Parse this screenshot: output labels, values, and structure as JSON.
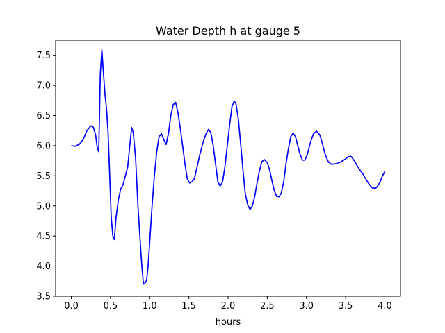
{
  "chart_data": {
    "type": "line",
    "title": "Water Depth h at gauge 5",
    "xlabel": "hours",
    "ylabel": "",
    "xlim": [
      -0.2,
      4.2
    ],
    "ylim": [
      3.5,
      7.75
    ],
    "x_ticks": [
      0.0,
      0.5,
      1.0,
      1.5,
      2.0,
      2.5,
      3.0,
      3.5,
      4.0
    ],
    "x_tick_labels": [
      "0.0",
      "0.5",
      "1.0",
      "1.5",
      "2.0",
      "2.5",
      "3.0",
      "3.5",
      "4.0"
    ],
    "y_ticks": [
      3.5,
      4.0,
      4.5,
      5.0,
      5.5,
      6.0,
      6.5,
      7.0,
      7.5
    ],
    "y_tick_labels": [
      "3.5",
      "4.0",
      "4.5",
      "5.0",
      "5.5",
      "6.0",
      "6.5",
      "7.0",
      "7.5"
    ],
    "grid": false,
    "legend": "none",
    "series": [
      {
        "color": "#0000ff",
        "points": [
          [
            0.0,
            6.0
          ],
          [
            0.05,
            5.99
          ],
          [
            0.1,
            6.02
          ],
          [
            0.15,
            6.1
          ],
          [
            0.2,
            6.25
          ],
          [
            0.25,
            6.33
          ],
          [
            0.28,
            6.31
          ],
          [
            0.31,
            6.18
          ],
          [
            0.33,
            5.98
          ],
          [
            0.35,
            5.9
          ],
          [
            0.36,
            6.5
          ],
          [
            0.37,
            7.2
          ],
          [
            0.39,
            7.59
          ],
          [
            0.41,
            7.2
          ],
          [
            0.43,
            6.85
          ],
          [
            0.45,
            6.6
          ],
          [
            0.47,
            6.2
          ],
          [
            0.49,
            5.5
          ],
          [
            0.51,
            4.8
          ],
          [
            0.53,
            4.5
          ],
          [
            0.55,
            4.44
          ],
          [
            0.57,
            4.8
          ],
          [
            0.6,
            5.1
          ],
          [
            0.63,
            5.28
          ],
          [
            0.66,
            5.35
          ],
          [
            0.69,
            5.5
          ],
          [
            0.72,
            5.65
          ],
          [
            0.75,
            6.05
          ],
          [
            0.77,
            6.3
          ],
          [
            0.79,
            6.22
          ],
          [
            0.82,
            5.8
          ],
          [
            0.85,
            5.0
          ],
          [
            0.88,
            4.4
          ],
          [
            0.9,
            4.0
          ],
          [
            0.92,
            3.7
          ],
          [
            0.94,
            3.72
          ],
          [
            0.96,
            3.76
          ],
          [
            0.98,
            4.0
          ],
          [
            1.0,
            4.4
          ],
          [
            1.03,
            5.0
          ],
          [
            1.06,
            5.5
          ],
          [
            1.09,
            5.9
          ],
          [
            1.12,
            6.15
          ],
          [
            1.15,
            6.2
          ],
          [
            1.18,
            6.1
          ],
          [
            1.21,
            6.02
          ],
          [
            1.24,
            6.2
          ],
          [
            1.27,
            6.5
          ],
          [
            1.3,
            6.68
          ],
          [
            1.33,
            6.72
          ],
          [
            1.36,
            6.55
          ],
          [
            1.39,
            6.3
          ],
          [
            1.42,
            6.0
          ],
          [
            1.45,
            5.7
          ],
          [
            1.48,
            5.45
          ],
          [
            1.51,
            5.38
          ],
          [
            1.54,
            5.4
          ],
          [
            1.57,
            5.45
          ],
          [
            1.6,
            5.62
          ],
          [
            1.64,
            5.85
          ],
          [
            1.68,
            6.05
          ],
          [
            1.72,
            6.2
          ],
          [
            1.75,
            6.27
          ],
          [
            1.78,
            6.22
          ],
          [
            1.81,
            6.0
          ],
          [
            1.84,
            5.7
          ],
          [
            1.87,
            5.4
          ],
          [
            1.9,
            5.33
          ],
          [
            1.93,
            5.4
          ],
          [
            1.96,
            5.65
          ],
          [
            1.99,
            6.0
          ],
          [
            2.02,
            6.35
          ],
          [
            2.05,
            6.65
          ],
          [
            2.08,
            6.74
          ],
          [
            2.1,
            6.7
          ],
          [
            2.13,
            6.45
          ],
          [
            2.16,
            6.05
          ],
          [
            2.19,
            5.6
          ],
          [
            2.22,
            5.2
          ],
          [
            2.25,
            5.02
          ],
          [
            2.28,
            4.94
          ],
          [
            2.31,
            5.0
          ],
          [
            2.34,
            5.15
          ],
          [
            2.37,
            5.38
          ],
          [
            2.4,
            5.58
          ],
          [
            2.43,
            5.73
          ],
          [
            2.46,
            5.77
          ],
          [
            2.5,
            5.72
          ],
          [
            2.53,
            5.6
          ],
          [
            2.56,
            5.42
          ],
          [
            2.59,
            5.25
          ],
          [
            2.62,
            5.16
          ],
          [
            2.65,
            5.15
          ],
          [
            2.68,
            5.22
          ],
          [
            2.71,
            5.4
          ],
          [
            2.74,
            5.7
          ],
          [
            2.77,
            5.95
          ],
          [
            2.8,
            6.15
          ],
          [
            2.83,
            6.21
          ],
          [
            2.86,
            6.15
          ],
          [
            2.89,
            6.0
          ],
          [
            2.92,
            5.85
          ],
          [
            2.95,
            5.76
          ],
          [
            2.98,
            5.76
          ],
          [
            3.01,
            5.85
          ],
          [
            3.05,
            6.05
          ],
          [
            3.09,
            6.2
          ],
          [
            3.13,
            6.24
          ],
          [
            3.17,
            6.18
          ],
          [
            3.2,
            6.05
          ],
          [
            3.24,
            5.85
          ],
          [
            3.28,
            5.73
          ],
          [
            3.32,
            5.69
          ],
          [
            3.38,
            5.7
          ],
          [
            3.44,
            5.73
          ],
          [
            3.5,
            5.78
          ],
          [
            3.54,
            5.82
          ],
          [
            3.57,
            5.82
          ],
          [
            3.6,
            5.77
          ],
          [
            3.64,
            5.68
          ],
          [
            3.68,
            5.6
          ],
          [
            3.72,
            5.53
          ],
          [
            3.76,
            5.44
          ],
          [
            3.8,
            5.36
          ],
          [
            3.84,
            5.3
          ],
          [
            3.88,
            5.29
          ],
          [
            3.91,
            5.33
          ],
          [
            3.94,
            5.4
          ],
          [
            3.97,
            5.5
          ],
          [
            4.0,
            5.57
          ]
        ]
      }
    ]
  }
}
